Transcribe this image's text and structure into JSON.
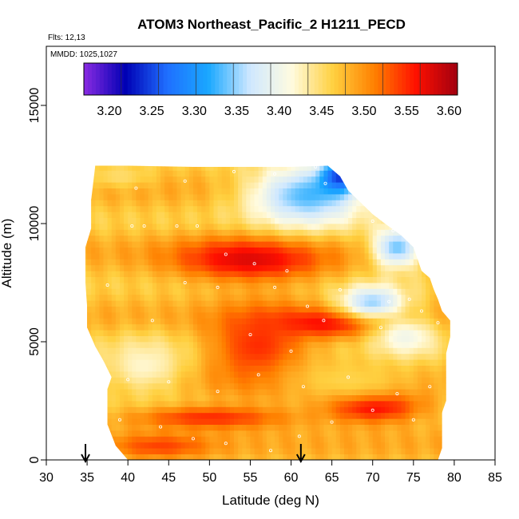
{
  "chart_data": {
    "type": "heatmap",
    "title": "ATOM3 Northeast_Pacific_2 H1211_PECD",
    "flights_label": "Flts: 12,13",
    "dates_label": "MMDD: 1025,1027",
    "xlabel": "Latitude (deg N)",
    "ylabel": "Altitude (m)",
    "xlim": [
      30,
      85
    ],
    "ylim": [
      0,
      17500
    ],
    "x_ticks": [
      30,
      35,
      40,
      45,
      50,
      55,
      60,
      65,
      70,
      75,
      80,
      85
    ],
    "y_ticks": [
      0,
      5000,
      10000,
      15000
    ],
    "x_tick_labels": [
      "30",
      "35",
      "40",
      "45",
      "50",
      "55",
      "60",
      "65",
      "70",
      "75",
      "80",
      "85"
    ],
    "y_tick_labels": [
      "0",
      "5000",
      "10000",
      "15000"
    ],
    "colorbar": {
      "min": 3.17,
      "max": 3.61,
      "ticks": [
        3.2,
        3.25,
        3.3,
        3.35,
        3.4,
        3.45,
        3.5,
        3.55,
        3.6
      ],
      "tick_labels": [
        "3.20",
        "3.25",
        "3.30",
        "3.35",
        "3.40",
        "3.45",
        "3.50",
        "3.55",
        "3.60"
      ],
      "colors": [
        "#8a2be2",
        "#0000b4",
        "#1f6fff",
        "#1aa8ff",
        "#cfe8ff",
        "#fffbe0",
        "#ffd040",
        "#ff8000",
        "#ff1000",
        "#a00010"
      ]
    },
    "vertical_profile_latitudes": [
      34.8,
      61.2
    ],
    "coverage_envelope": [
      [
        36.0,
        12450
      ],
      [
        40.0,
        12450
      ],
      [
        48.0,
        12400
      ],
      [
        55.0,
        12400
      ],
      [
        60.0,
        12400
      ],
      [
        64.5,
        12450
      ],
      [
        66.0,
        12000
      ],
      [
        67.0,
        11400
      ],
      [
        68.5,
        10900
      ],
      [
        70.0,
        10400
      ],
      [
        71.5,
        10000
      ],
      [
        73.5,
        9500
      ],
      [
        75.0,
        9000
      ],
      [
        75.5,
        8500
      ],
      [
        76.0,
        8000
      ],
      [
        77.0,
        7700
      ],
      [
        77.5,
        7200
      ],
      [
        78.0,
        6800
      ],
      [
        78.5,
        6300
      ],
      [
        79.5,
        5900
      ],
      [
        79.5,
        5200
      ],
      [
        79.0,
        4500
      ],
      [
        79.0,
        2500
      ],
      [
        78.5,
        2000
      ],
      [
        78.5,
        500
      ],
      [
        78.0,
        0
      ],
      [
        40.0,
        0
      ],
      [
        38.5,
        600
      ],
      [
        37.5,
        1500
      ],
      [
        37.5,
        3000
      ],
      [
        38.0,
        3500
      ],
      [
        37.0,
        4200
      ],
      [
        36.0,
        4800
      ],
      [
        35.0,
        5600
      ],
      [
        35.0,
        6500
      ],
      [
        34.8,
        7500
      ],
      [
        34.8,
        9000
      ],
      [
        35.5,
        9800
      ],
      [
        35.5,
        11000
      ],
      [
        36.0,
        12450
      ]
    ],
    "value_features": [
      {
        "lat": 55,
        "alt": 8500,
        "value": 3.58,
        "lat_spread": 9,
        "alt_spread": 900
      },
      {
        "lat": 64,
        "alt": 5800,
        "value": 3.57,
        "lat_spread": 8,
        "alt_spread": 600
      },
      {
        "lat": 70,
        "alt": 2300,
        "value": 3.58,
        "lat_spread": 6,
        "alt_spread": 700
      },
      {
        "lat": 50,
        "alt": 1800,
        "value": 3.55,
        "lat_spread": 10,
        "alt_spread": 500
      },
      {
        "lat": 44,
        "alt": 600,
        "value": 3.54,
        "lat_spread": 6,
        "alt_spread": 500
      },
      {
        "lat": 56,
        "alt": 4800,
        "value": 3.55,
        "lat_spread": 6,
        "alt_spread": 1800
      },
      {
        "lat": 62,
        "alt": 11200,
        "value": 3.33,
        "lat_spread": 7,
        "alt_spread": 1300
      },
      {
        "lat": 66,
        "alt": 12000,
        "value": 3.24,
        "lat_spread": 2.5,
        "alt_spread": 700
      },
      {
        "lat": 73,
        "alt": 9000,
        "value": 3.34,
        "lat_spread": 3,
        "alt_spread": 900
      },
      {
        "lat": 70,
        "alt": 6700,
        "value": 3.35,
        "lat_spread": 4,
        "alt_spread": 700
      },
      {
        "lat": 74,
        "alt": 5200,
        "value": 3.4,
        "lat_spread": 4,
        "alt_spread": 900
      },
      {
        "lat": 42,
        "alt": 4000,
        "value": 3.42,
        "lat_spread": 5,
        "alt_spread": 1200
      },
      {
        "lat": 39,
        "alt": 12000,
        "value": 3.45,
        "lat_spread": 4,
        "alt_spread": 500
      },
      {
        "lat": 67,
        "alt": 3400,
        "value": 3.46,
        "lat_spread": 8,
        "alt_spread": 900
      }
    ],
    "sample_points": [
      [
        40.5,
        9900
      ],
      [
        42.0,
        9900
      ],
      [
        46.0,
        9900
      ],
      [
        48.5,
        9900
      ],
      [
        52.0,
        8700
      ],
      [
        55.5,
        8300
      ],
      [
        59.5,
        8000
      ],
      [
        47.0,
        7500
      ],
      [
        51.0,
        7300
      ],
      [
        58.0,
        7300
      ],
      [
        62.0,
        6500
      ],
      [
        66.0,
        7200
      ],
      [
        72.0,
        6700
      ],
      [
        74.5,
        6800
      ],
      [
        37.5,
        7400
      ],
      [
        43.0,
        5900
      ],
      [
        55.0,
        5300
      ],
      [
        60.0,
        4600
      ],
      [
        64.0,
        5900
      ],
      [
        71.0,
        5600
      ],
      [
        76.0,
        6300
      ],
      [
        78.0,
        5800
      ],
      [
        40.0,
        3400
      ],
      [
        45.0,
        3300
      ],
      [
        51.0,
        2900
      ],
      [
        56.0,
        3600
      ],
      [
        61.5,
        3100
      ],
      [
        67.0,
        3500
      ],
      [
        73.0,
        2800
      ],
      [
        77.0,
        3100
      ],
      [
        39.0,
        1700
      ],
      [
        44.0,
        1400
      ],
      [
        48.0,
        900
      ],
      [
        52.0,
        700
      ],
      [
        57.5,
        400
      ],
      [
        61.0,
        1000
      ],
      [
        65.0,
        1600
      ],
      [
        70.0,
        2100
      ],
      [
        75.0,
        1700
      ],
      [
        41.0,
        11500
      ],
      [
        47.0,
        11800
      ],
      [
        53.0,
        12200
      ],
      [
        58.0,
        12100
      ],
      [
        63.0,
        12400
      ],
      [
        64.2,
        11700
      ],
      [
        68.0,
        11200
      ],
      [
        70.0,
        10100
      ],
      [
        72.5,
        9700
      ]
    ]
  }
}
